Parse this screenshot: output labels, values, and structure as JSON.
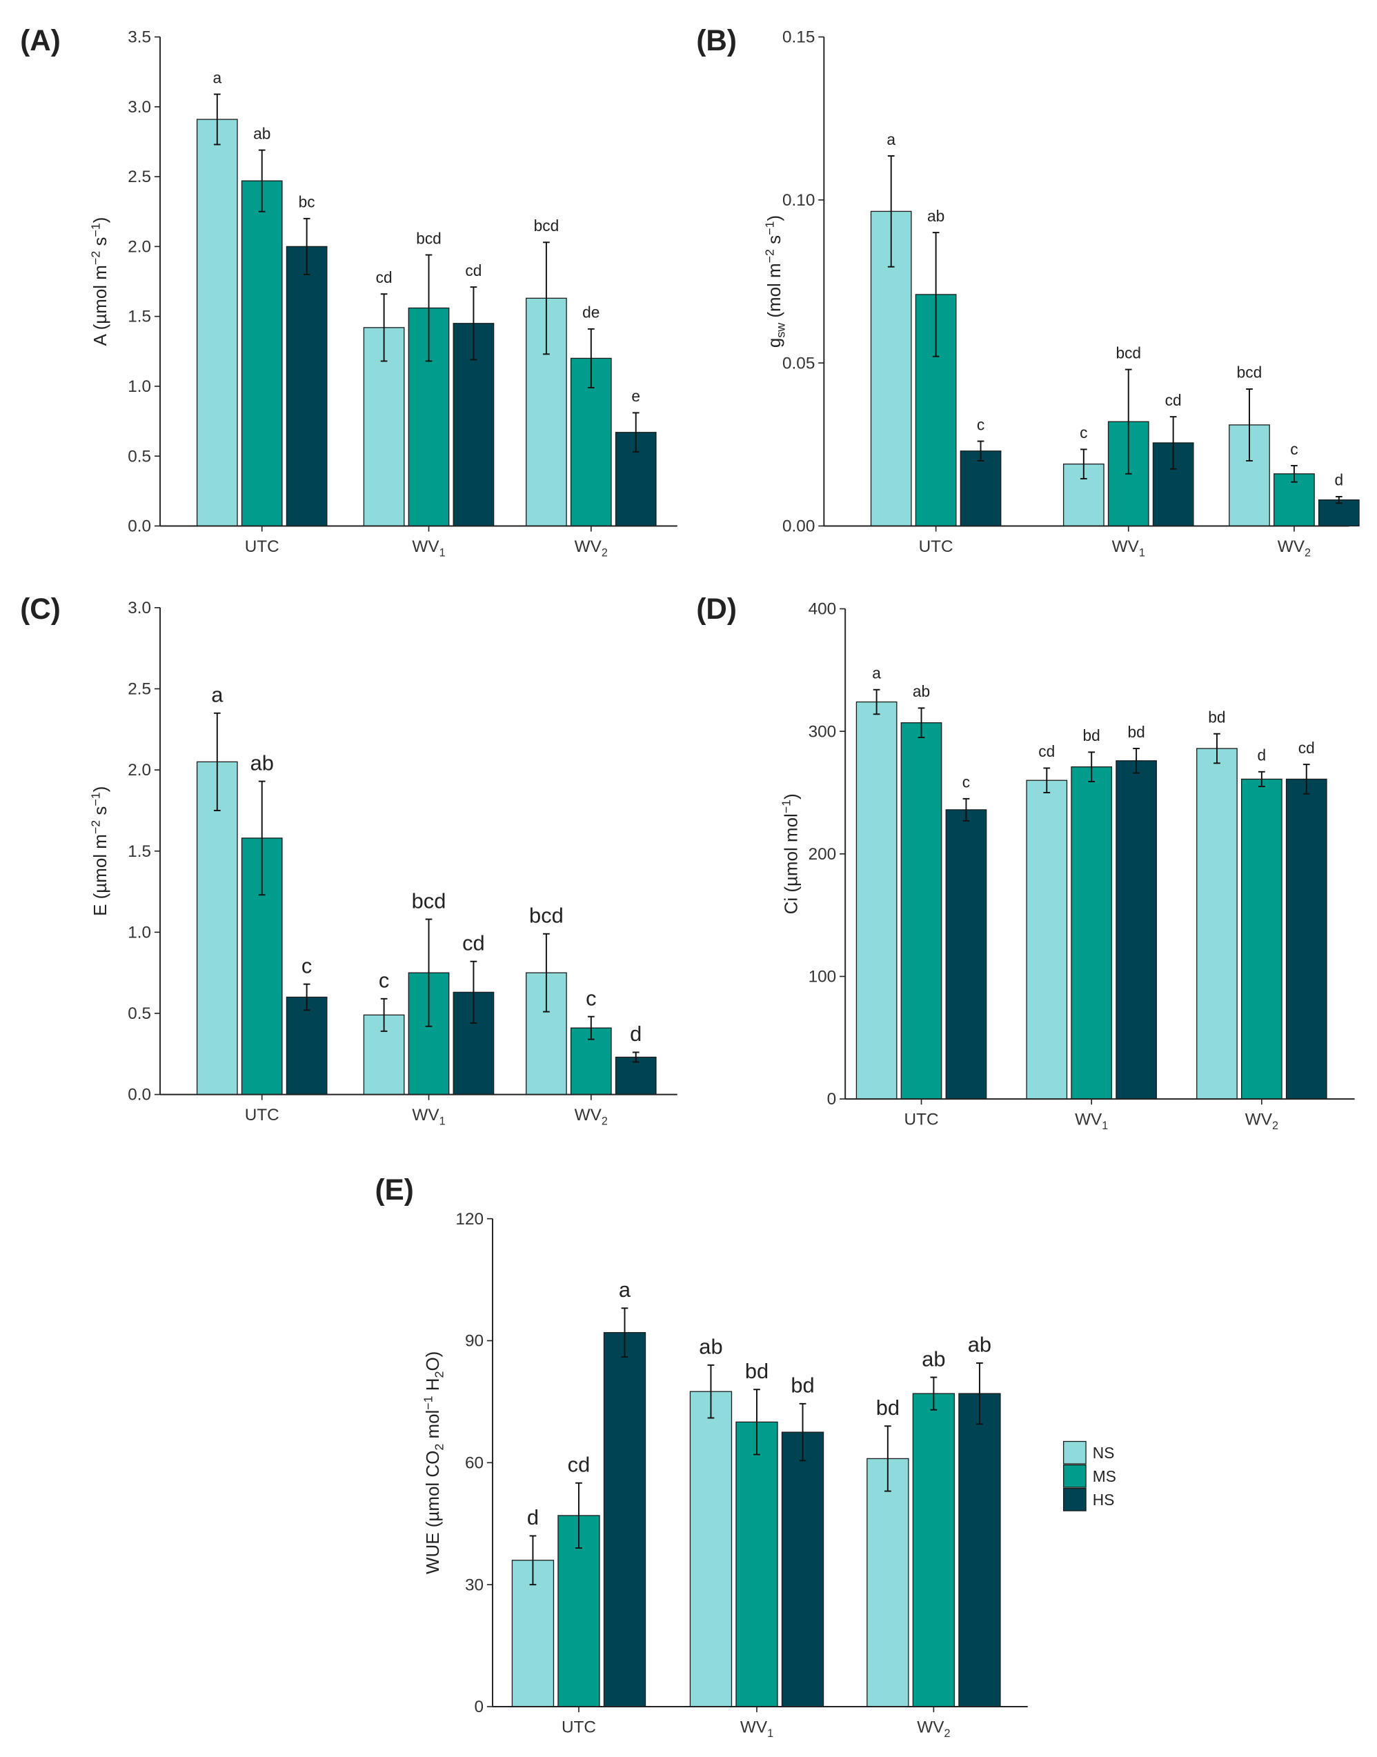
{
  "legend": {
    "title": "",
    "entries": [
      "NS",
      "MS",
      "HS"
    ]
  },
  "colors": {
    "NS": "#8fdbdc",
    "MS": "#009d8c",
    "HS": "#004454",
    "axis": "#222222",
    "bar_edge": "#1a1a1a"
  },
  "chart_data": [
    {
      "panel": "(A)",
      "type": "bar",
      "categories": [
        "UTC",
        "WV1",
        "WV2"
      ],
      "ylabel_parts": [
        [
          "A (µmol m",
          ""
        ],
        [
          "−2",
          "sup"
        ],
        [
          " s",
          ""
        ],
        [
          "−1",
          "sup"
        ],
        [
          ")",
          ""
        ]
      ],
      "ylim": [
        0,
        3.5
      ],
      "yticks": [
        "0.0",
        "0.5",
        "1.0",
        "1.5",
        "2.0",
        "2.5",
        "3.0",
        "3.5"
      ],
      "series": [
        {
          "name": "NS",
          "values": [
            2.91,
            1.42,
            1.63
          ],
          "errors": [
            0.18,
            0.24,
            0.4
          ],
          "letters": [
            "a",
            "cd",
            "bcd"
          ]
        },
        {
          "name": "MS",
          "values": [
            2.47,
            1.56,
            1.2
          ],
          "errors": [
            0.22,
            0.38,
            0.21
          ],
          "letters": [
            "ab",
            "bcd",
            "de"
          ]
        },
        {
          "name": "HS",
          "values": [
            2.0,
            1.45,
            0.67
          ],
          "errors": [
            0.2,
            0.26,
            0.14
          ],
          "letters": [
            "bc",
            "cd",
            "e"
          ]
        }
      ]
    },
    {
      "panel": "(B)",
      "type": "bar",
      "categories": [
        "UTC",
        "WV1",
        "WV2"
      ],
      "ylabel_parts": [
        [
          "g",
          ""
        ],
        [
          "sw",
          "sub"
        ],
        [
          "  (mol m",
          ""
        ],
        [
          "−2",
          "sup"
        ],
        [
          " s",
          ""
        ],
        [
          "−1",
          "sup"
        ],
        [
          ")",
          ""
        ]
      ],
      "ylim": [
        0,
        0.15
      ],
      "yticks": [
        "0.00",
        "0.05",
        "0.10",
        "0.15"
      ],
      "series": [
        {
          "name": "NS",
          "values": [
            0.0965,
            0.019,
            0.031
          ],
          "errors": [
            0.017,
            0.0045,
            0.011
          ],
          "letters": [
            "a",
            "c",
            "bcd"
          ]
        },
        {
          "name": "MS",
          "values": [
            0.071,
            0.032,
            0.016
          ],
          "errors": [
            0.019,
            0.016,
            0.0025
          ],
          "letters": [
            "ab",
            "bcd",
            "c"
          ]
        },
        {
          "name": "HS",
          "values": [
            0.023,
            0.0255,
            0.008
          ],
          "errors": [
            0.003,
            0.008,
            0.001
          ],
          "letters": [
            "c",
            "cd",
            "d"
          ]
        }
      ]
    },
    {
      "panel": "(C)",
      "type": "bar",
      "categories": [
        "UTC",
        "WV1",
        "WV2"
      ],
      "ylabel_parts": [
        [
          "E (µmol m",
          ""
        ],
        [
          "−2",
          "sup"
        ],
        [
          " s",
          ""
        ],
        [
          "−1",
          "sup"
        ],
        [
          ")",
          ""
        ]
      ],
      "ylim": [
        0,
        3.0
      ],
      "yticks": [
        "0.0",
        "0.5",
        "1.0",
        "1.5",
        "2.0",
        "2.5",
        "3.0"
      ],
      "series": [
        {
          "name": "NS",
          "values": [
            2.05,
            0.49,
            0.75
          ],
          "errors": [
            0.3,
            0.1,
            0.24
          ],
          "letters": [
            "a",
            "c",
            "bcd"
          ]
        },
        {
          "name": "MS",
          "values": [
            1.58,
            0.75,
            0.41
          ],
          "errors": [
            0.35,
            0.33,
            0.07
          ],
          "letters": [
            "ab",
            "bcd",
            "c"
          ]
        },
        {
          "name": "HS",
          "values": [
            0.6,
            0.63,
            0.23
          ],
          "errors": [
            0.08,
            0.19,
            0.03
          ],
          "letters": [
            "c",
            "cd",
            "d"
          ]
        }
      ]
    },
    {
      "panel": "(D)",
      "type": "bar",
      "categories": [
        "UTC",
        "WV1",
        "WV2"
      ],
      "ylabel_parts": [
        [
          "Ci (µmol mol",
          ""
        ],
        [
          "−1",
          "sup"
        ],
        [
          ")",
          ""
        ]
      ],
      "ylim": [
        0,
        400
      ],
      "yticks": [
        "0",
        "100",
        "200",
        "300",
        "400"
      ],
      "series": [
        {
          "name": "NS",
          "values": [
            324,
            260,
            286
          ],
          "errors": [
            10,
            10,
            12
          ],
          "letters": [
            "a",
            "cd",
            "bd"
          ]
        },
        {
          "name": "MS",
          "values": [
            307,
            271,
            261
          ],
          "errors": [
            12,
            12,
            6
          ],
          "letters": [
            "ab",
            "bd",
            "d"
          ]
        },
        {
          "name": "HS",
          "values": [
            236,
            276,
            261
          ],
          "errors": [
            9,
            10,
            12
          ],
          "letters": [
            "c",
            "bd",
            "cd"
          ]
        }
      ]
    },
    {
      "panel": "(E)",
      "type": "bar",
      "categories": [
        "UTC",
        "WV1",
        "WV2"
      ],
      "ylabel_parts": [
        [
          "WUE (µmol CO",
          ""
        ],
        [
          "2",
          "sub"
        ],
        [
          " mol",
          ""
        ],
        [
          "−1",
          "sup"
        ],
        [
          " H",
          ""
        ],
        [
          "2",
          "sub"
        ],
        [
          "O)",
          ""
        ]
      ],
      "ylim": [
        0,
        120
      ],
      "yticks": [
        "0",
        "30",
        "60",
        "90",
        "120"
      ],
      "series": [
        {
          "name": "NS",
          "values": [
            36,
            77.5,
            61
          ],
          "errors": [
            6,
            6.5,
            8
          ],
          "letters": [
            "d",
            "ab",
            "bd"
          ]
        },
        {
          "name": "MS",
          "values": [
            47,
            70,
            77
          ],
          "errors": [
            8,
            8,
            4
          ],
          "letters": [
            "cd",
            "bd",
            "ab"
          ]
        },
        {
          "name": "HS",
          "values": [
            92,
            67.5,
            77
          ],
          "errors": [
            6,
            7,
            7.5
          ],
          "letters": [
            "a",
            "bd",
            "ab"
          ]
        }
      ]
    }
  ]
}
